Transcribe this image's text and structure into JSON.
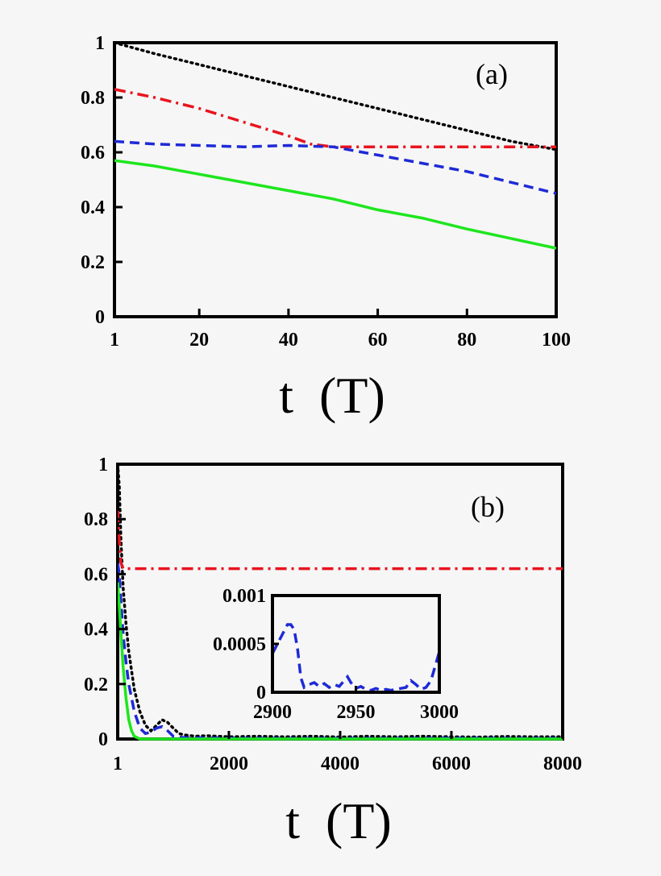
{
  "chart_data": [
    {
      "type": "line",
      "panel_label": "(a)",
      "xlabel": "t  (T)",
      "ylabel": "",
      "xlim": [
        1,
        100
      ],
      "ylim": [
        0,
        1
      ],
      "x_ticks": [
        1,
        20,
        40,
        60,
        80,
        100
      ],
      "x_tick_labels": [
        "1",
        "20",
        "40",
        "60",
        "80",
        "100"
      ],
      "y_ticks": [
        0,
        0.2,
        0.4,
        0.6,
        0.8,
        1
      ],
      "y_tick_labels": [
        "0",
        "0.2",
        "0.4",
        "0.6",
        "0.8",
        "1"
      ],
      "grid": false,
      "series": [
        {
          "color": "#000000",
          "style": "dotted",
          "x": [
            1,
            10,
            20,
            30,
            40,
            50,
            60,
            70,
            80,
            90,
            100
          ],
          "y": [
            1.0,
            0.96,
            0.92,
            0.88,
            0.84,
            0.8,
            0.76,
            0.72,
            0.68,
            0.64,
            0.61
          ]
        },
        {
          "color": "#e8141e",
          "style": "dashdot",
          "x": [
            1,
            10,
            20,
            30,
            40,
            45,
            50,
            55,
            60,
            70,
            80,
            90,
            100
          ],
          "y": [
            0.83,
            0.8,
            0.76,
            0.71,
            0.66,
            0.63,
            0.62,
            0.62,
            0.62,
            0.62,
            0.62,
            0.62,
            0.62
          ]
        },
        {
          "color": "#1e2ad6",
          "style": "dashed",
          "x": [
            1,
            10,
            20,
            30,
            40,
            50,
            60,
            70,
            80,
            90,
            100
          ],
          "y": [
            0.64,
            0.63,
            0.625,
            0.62,
            0.625,
            0.62,
            0.59,
            0.56,
            0.53,
            0.49,
            0.45
          ]
        },
        {
          "color": "#1ee61e",
          "style": "solid",
          "x": [
            1,
            10,
            20,
            30,
            40,
            50,
            60,
            70,
            80,
            90,
            100
          ],
          "y": [
            0.57,
            0.55,
            0.52,
            0.49,
            0.46,
            0.43,
            0.39,
            0.36,
            0.32,
            0.285,
            0.25
          ]
        }
      ]
    },
    {
      "type": "line",
      "panel_label": "(b)",
      "xlabel": "t  (T)",
      "ylabel": "",
      "xlim": [
        1,
        8000
      ],
      "ylim": [
        0,
        1
      ],
      "x_ticks": [
        1,
        2000,
        4000,
        6000,
        8000
      ],
      "x_tick_labels": [
        "1",
        "2000",
        "4000",
        "6000",
        "8000"
      ],
      "y_ticks": [
        0,
        0.2,
        0.4,
        0.6,
        0.8,
        1
      ],
      "y_tick_labels": [
        "0",
        "0.2",
        "0.4",
        "0.6",
        "0.8",
        "1"
      ],
      "grid": false,
      "series": [
        {
          "color": "#000000",
          "style": "dotted",
          "x": [
            1,
            30,
            60,
            100,
            150,
            200,
            300,
            400,
            500,
            600,
            700,
            800,
            900,
            1000,
            1100,
            1200,
            1400,
            1600,
            1800,
            2000,
            2500,
            3000,
            3500,
            4000,
            4500,
            5000,
            5500,
            6000,
            6500,
            7000,
            7500,
            8000
          ],
          "y": [
            1.0,
            0.92,
            0.72,
            0.55,
            0.42,
            0.32,
            0.18,
            0.1,
            0.05,
            0.03,
            0.05,
            0.07,
            0.06,
            0.04,
            0.02,
            0.015,
            0.01,
            0.012,
            0.01,
            0.008,
            0.01,
            0.008,
            0.01,
            0.007,
            0.01,
            0.008,
            0.01,
            0.008,
            0.007,
            0.009,
            0.008,
            0.008
          ]
        },
        {
          "color": "#e8141e",
          "style": "dashdot",
          "x": [
            1,
            30,
            60,
            100,
            200,
            1000,
            4000,
            8000
          ],
          "y": [
            0.83,
            0.72,
            0.64,
            0.62,
            0.62,
            0.62,
            0.62,
            0.62
          ]
        },
        {
          "color": "#1e2ad6",
          "style": "dashed",
          "x": [
            1,
            30,
            60,
            100,
            150,
            200,
            300,
            400,
            500,
            600,
            700,
            800,
            900,
            1000,
            1200,
            1500,
            2000,
            3000,
            4000,
            5000,
            6000,
            7000,
            8000
          ],
          "y": [
            0.64,
            0.6,
            0.5,
            0.38,
            0.28,
            0.2,
            0.1,
            0.04,
            0.02,
            0.025,
            0.04,
            0.045,
            0.03,
            0.01,
            0.005,
            0.004,
            0.003,
            0.002,
            0.002,
            0.002,
            0.003,
            0.002,
            0.002
          ]
        },
        {
          "color": "#1ee61e",
          "style": "solid",
          "x": [
            1,
            30,
            60,
            100,
            150,
            200,
            250,
            300,
            400,
            600,
            1000,
            2000,
            4000,
            8000
          ],
          "y": [
            0.57,
            0.48,
            0.38,
            0.26,
            0.15,
            0.07,
            0.03,
            0.01,
            0.0,
            0.0,
            0.0,
            0.0,
            0.0,
            0.0
          ]
        }
      ],
      "inset": {
        "xlim": [
          2900,
          3000
        ],
        "ylim": [
          0,
          0.001
        ],
        "x_ticks": [
          2900,
          2950,
          3000
        ],
        "x_tick_labels": [
          "2900",
          "2950",
          "3000"
        ],
        "y_ticks": [
          0,
          0.0005,
          0.001
        ],
        "y_tick_labels": [
          "0",
          "0.0005",
          "0.001"
        ],
        "series": [
          {
            "color": "#1e2ad6",
            "style": "dashed",
            "x": [
              2900,
              2903,
              2906,
              2909,
              2911,
              2913,
              2915,
              2917,
              2919,
              2922,
              2925,
              2928,
              2931,
              2934,
              2937,
              2940,
              2943,
              2945,
              2947,
              2950,
              2953,
              2956,
              2959,
              2962,
              2965,
              2968,
              2971,
              2974,
              2977,
              2980,
              2983,
              2986,
              2989,
              2992,
              2995,
              2998,
              3000
            ],
            "y": [
              0.0004,
              0.0005,
              0.0006,
              0.0007,
              0.0007,
              0.00065,
              0.00045,
              0.00015,
              5e-05,
              8e-05,
              0.0001,
              6e-05,
              9e-05,
              5e-05,
              8e-05,
              6e-05,
              0.00012,
              0.00016,
              0.0001,
              4e-05,
              6e-05,
              3e-05,
              2e-05,
              4e-05,
              2e-05,
              3e-05,
              2e-05,
              3e-05,
              4e-05,
              5e-05,
              0.00012,
              8e-05,
              3e-05,
              5e-05,
              0.00012,
              0.0003,
              0.00042
            ]
          },
          {
            "color": "#1ee61e",
            "style": "solid",
            "x": [
              2900,
              3000
            ],
            "y": [
              0,
              0
            ]
          }
        ]
      }
    }
  ]
}
